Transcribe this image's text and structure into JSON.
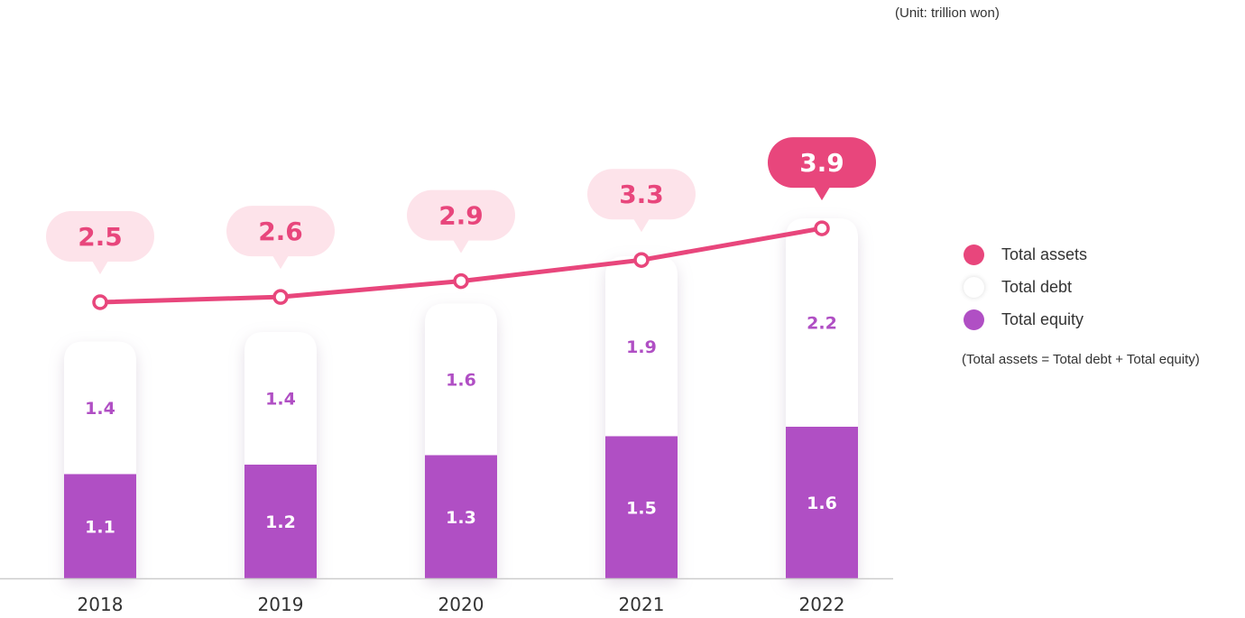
{
  "unit_label": "(Unit: trillion won)",
  "legend": {
    "items": [
      {
        "label": "Total assets",
        "color": "#e8467c",
        "icon": "dot"
      },
      {
        "label": "Total debt",
        "color": "#ffffff",
        "icon": "dot"
      },
      {
        "label": "Total equity",
        "color": "#b04fc4",
        "icon": "dot"
      }
    ],
    "note": "(Total assets = Total debt + Total equity)"
  },
  "colors": {
    "assets_line": "#e8467c",
    "assets_bubble": "#fde3ea",
    "assets_bubble_highlight": "#e8467c",
    "debt": "#ffffff",
    "equity": "#b04fc4",
    "label_purple": "#b04fc4",
    "axis": "#cccccc"
  },
  "chart_data": {
    "type": "bar",
    "stacked": true,
    "categories": [
      "2018",
      "2019",
      "2020",
      "2021",
      "2022"
    ],
    "series": [
      {
        "name": "Total equity",
        "type": "bar",
        "values": [
          1.1,
          1.2,
          1.3,
          1.5,
          1.6
        ]
      },
      {
        "name": "Total debt",
        "type": "bar",
        "values": [
          1.4,
          1.4,
          1.6,
          1.9,
          2.2
        ]
      },
      {
        "name": "Total assets",
        "type": "line",
        "values": [
          2.5,
          2.6,
          2.9,
          3.3,
          3.9
        ]
      }
    ],
    "value_labels": {
      "equity": [
        "1.1",
        "1.2",
        "1.3",
        "1.5",
        "1.6"
      ],
      "debt": [
        "1.4",
        "1.4",
        "1.6",
        "1.9",
        "2.2"
      ],
      "assets": [
        "2.5",
        "2.6",
        "2.9",
        "3.3",
        "3.9"
      ]
    },
    "highlight_last": true,
    "grid": false
  }
}
